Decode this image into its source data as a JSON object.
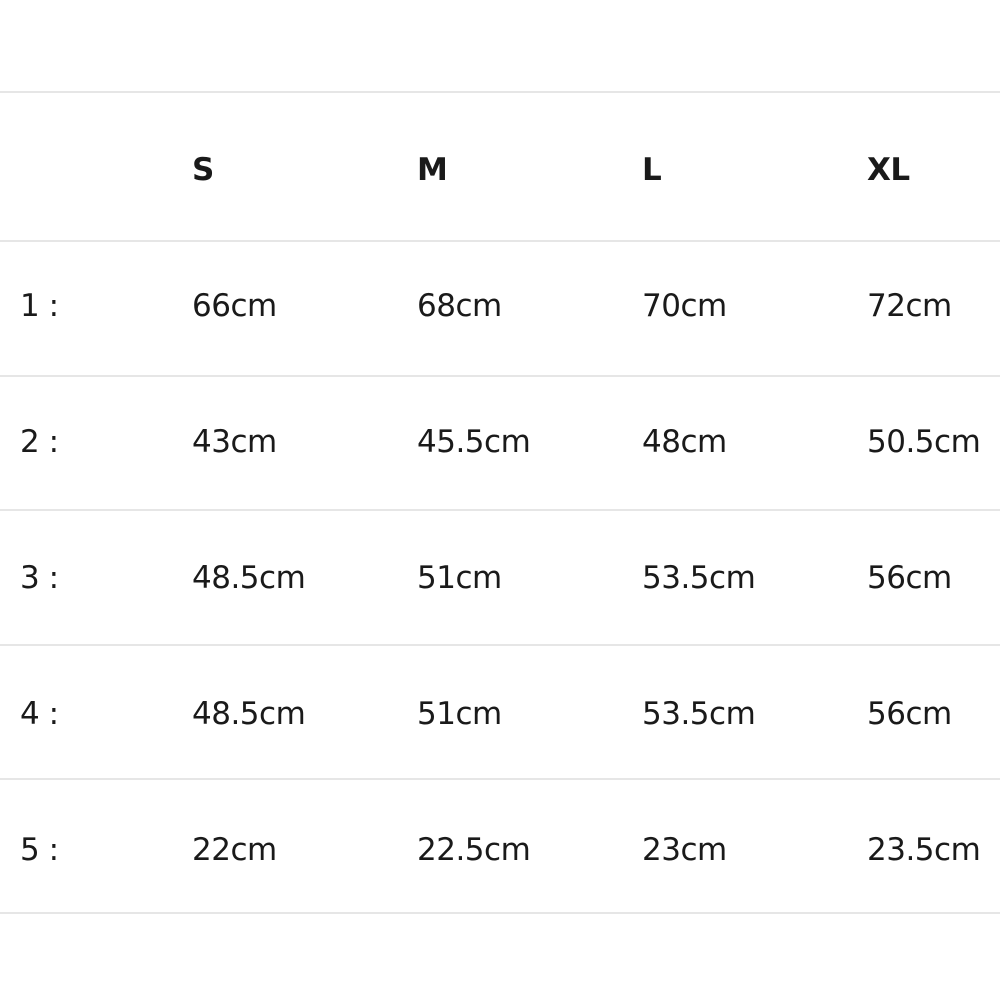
{
  "table": {
    "headers": [
      "",
      "S",
      "M",
      "L",
      "XL"
    ],
    "rows": [
      {
        "label": "1 :",
        "values": [
          "66cm",
          "68cm",
          "70cm",
          "72cm"
        ]
      },
      {
        "label": "2 :",
        "values": [
          "43cm",
          "45.5cm",
          "48cm",
          "50.5cm"
        ]
      },
      {
        "label": "3 :",
        "values": [
          "48.5cm",
          "51cm",
          "53.5cm",
          "56cm"
        ]
      },
      {
        "label": "4 :",
        "values": [
          "48.5cm",
          "51cm",
          "53.5cm",
          "56cm"
        ]
      },
      {
        "label": "5 :",
        "values": [
          "22cm",
          "22.5cm",
          "23cm",
          "23.5cm"
        ]
      }
    ]
  }
}
